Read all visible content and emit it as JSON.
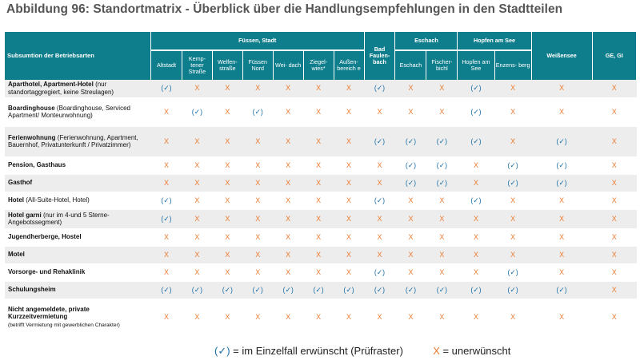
{
  "title": "Abbildung 96: Standortmatrix - Überblick über die Handlungsempfehlungen in den Stadtteilen",
  "header": {
    "row_label": "Subsumtion der Betriebsarten",
    "groups": [
      {
        "label": "Füssen, Stadt",
        "span": 7
      },
      {
        "label": "Bad Faulen- bach",
        "span": 1,
        "rowspan": 2
      },
      {
        "label": "Eschach",
        "span": 2
      },
      {
        "label": "Hopfen am See",
        "span": 2
      },
      {
        "label": "Weißensee",
        "span": 1,
        "rowspan": 2
      },
      {
        "label": "GE, GI",
        "span": 1,
        "rowspan": 2
      }
    ],
    "subcolumns": [
      "Altstadt",
      "Kemp- tener Straße",
      "Welfen- straße",
      "Füssen Nord",
      "Wei- dach",
      "Ziegel- wies*",
      "Außen- bereich e",
      "Eschach",
      "Fischer- bichl",
      "Hopfen am See",
      "Enzens- berg"
    ]
  },
  "symbols": {
    "v": "(✓)",
    "x": "X"
  },
  "rows": [
    {
      "name": "Aparthotel, Apartment-Hotel",
      "detail": "(nur standortaggregiert, keine Streulagen)",
      "values": [
        "v",
        "x",
        "x",
        "x",
        "x",
        "x",
        "x",
        "v",
        "x",
        "x",
        "v",
        "x",
        "x",
        "x"
      ]
    },
    {
      "name": "Boardinghouse",
      "detail": "(Boardinghouse, Serviced Apartment/ Monteurwohnung)",
      "values": [
        "x",
        "v",
        "x",
        "v",
        "x",
        "x",
        "x",
        "x",
        "x",
        "x",
        "v",
        "x",
        "x",
        "x"
      ]
    },
    {
      "name": "Ferienwohnung",
      "detail": "(Ferienwohnung, Apartment, Bauernhof, Privatunterkunft / Privatzimmer)",
      "values": [
        "x",
        "x",
        "x",
        "x",
        "x",
        "x",
        "x",
        "v",
        "v",
        "v",
        "v",
        "x",
        "v",
        "x"
      ]
    },
    {
      "name": "Pension, Gasthaus",
      "detail": "",
      "values": [
        "x",
        "x",
        "x",
        "x",
        "x",
        "x",
        "x",
        "x",
        "v",
        "v",
        "x",
        "v",
        "v",
        "x"
      ]
    },
    {
      "name": "Gasthof",
      "detail": "",
      "values": [
        "x",
        "x",
        "x",
        "x",
        "x",
        "x",
        "x",
        "x",
        "v",
        "v",
        "x",
        "v",
        "v",
        "x"
      ]
    },
    {
      "name": "Hotel",
      "detail": "(All-Suite-Hotel, Hotel)",
      "values": [
        "v",
        "x",
        "x",
        "x",
        "x",
        "x",
        "x",
        "v",
        "x",
        "x",
        "v",
        "x",
        "x",
        "x"
      ]
    },
    {
      "name": "Hotel garni",
      "detail": "(nur im 4-und 5 Sterne-Angebotssegment)",
      "values": [
        "v",
        "x",
        "x",
        "x",
        "x",
        "x",
        "x",
        "x",
        "x",
        "x",
        "x",
        "x",
        "x",
        "x"
      ]
    },
    {
      "name": "Jugendherberge, Hostel",
      "detail": "",
      "values": [
        "x",
        "x",
        "x",
        "x",
        "x",
        "x",
        "x",
        "x",
        "x",
        "x",
        "x",
        "x",
        "x",
        "x"
      ]
    },
    {
      "name": "Motel",
      "detail": "",
      "values": [
        "x",
        "x",
        "x",
        "x",
        "x",
        "x",
        "x",
        "x",
        "x",
        "x",
        "x",
        "x",
        "x",
        "x"
      ]
    },
    {
      "name": "Vorsorge- und Rehaklinik",
      "detail": "",
      "values": [
        "x",
        "x",
        "x",
        "x",
        "x",
        "x",
        "x",
        "v",
        "x",
        "x",
        "x",
        "v",
        "x",
        "x"
      ]
    },
    {
      "name": "Schulungsheim",
      "detail": "",
      "values": [
        "v",
        "v",
        "v",
        "v",
        "v",
        "v",
        "v",
        "v",
        "v",
        "v",
        "v",
        "v",
        "v",
        "x"
      ]
    },
    {
      "name": "Nicht angemeldete, private Kurzzeitvermietung",
      "detail": "(betrifft Vermietung mit gewerblichen Charakter)",
      "values": [
        "x",
        "x",
        "x",
        "x",
        "x",
        "x",
        "x",
        "x",
        "x",
        "x",
        "x",
        "x",
        "x",
        "x"
      ]
    }
  ],
  "legend": {
    "v_symbol": "(✓)",
    "v_text": " = im Einzelfall erwünscht (Prüfraster)",
    "x_symbol": "X",
    "x_text": " = unerwünscht"
  },
  "colors": {
    "header_bg": "#0f7e8c",
    "check": "#1a6fa8",
    "cross": "#ec7a2e",
    "stripe": "#ededed"
  }
}
